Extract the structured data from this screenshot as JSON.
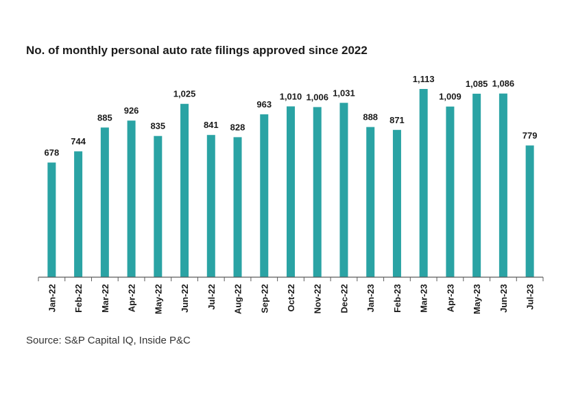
{
  "title": "No. of monthly personal auto rate filings approved since 2022",
  "source": "Source: S&P Capital IQ, Inside P&C",
  "colors": {
    "bar": "#2aa3a4",
    "axis": "#595959",
    "text": "#1a1a1a"
  },
  "chart_data": {
    "type": "bar",
    "title": "No. of monthly personal auto rate filings approved since 2022",
    "xlabel": "",
    "ylabel": "",
    "categories": [
      "Jan-22",
      "Feb-22",
      "Mar-22",
      "Apr-22",
      "May-22",
      "Jun-22",
      "Jul-22",
      "Aug-22",
      "Sep-22",
      "Oct-22",
      "Nov-22",
      "Dec-22",
      "Jan-23",
      "Feb-23",
      "Mar-23",
      "Apr-23",
      "May-23",
      "Jun-23",
      "Jul-23"
    ],
    "values": [
      678,
      744,
      885,
      926,
      835,
      1025,
      841,
      828,
      963,
      1010,
      1006,
      1031,
      888,
      871,
      1113,
      1009,
      1085,
      1086,
      779
    ],
    "value_labels": [
      "678",
      "744",
      "885",
      "926",
      "835",
      "1,025",
      "841",
      "828",
      "963",
      "1,010",
      "1,006",
      "1,031",
      "888",
      "871",
      "1,113",
      "1,009",
      "1,085",
      "1,086",
      "779"
    ],
    "ylim": [
      0,
      1113
    ],
    "grid": false,
    "legend": "none"
  }
}
